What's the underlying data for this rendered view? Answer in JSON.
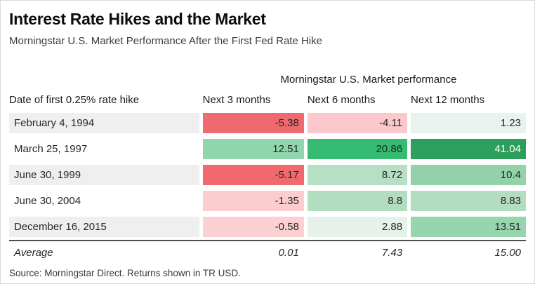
{
  "page": {
    "title": "Interest Rate Hikes and the Market",
    "subtitle": "Morningstar U.S. Market Performance After the First Fed Rate Hike",
    "source": "Source: Morningstar Direct. Returns shown in TR USD."
  },
  "table": {
    "group_header": "Morningstar U.S. Market performance",
    "columns": [
      "Date of first 0.25% rate hike",
      "Next 3 months",
      "Next 6 months",
      "Next 12 months"
    ],
    "rows": [
      {
        "label": "February 4, 1994",
        "label_bg": "#efefef",
        "cells": [
          {
            "v": "-5.38",
            "bg": "#f0696e",
            "fg": "#262626"
          },
          {
            "v": "-4.11",
            "bg": "#fbc8cb",
            "fg": "#262626"
          },
          {
            "v": "1.23",
            "bg": "#e9f2ec",
            "fg": "#262626"
          }
        ]
      },
      {
        "label": "March 25, 1997",
        "label_bg": "#ffffff",
        "cells": [
          {
            "v": "12.51",
            "bg": "#90d5ab",
            "fg": "#262626"
          },
          {
            "v": "20.86",
            "bg": "#36bb72",
            "fg": "#262626"
          },
          {
            "v": "41.04",
            "bg": "#2c9f5c",
            "fg": "#ffffff"
          }
        ]
      },
      {
        "label": "June 30, 1999",
        "label_bg": "#efefef",
        "cells": [
          {
            "v": "-5.17",
            "bg": "#f0696e",
            "fg": "#262626"
          },
          {
            "v": "8.72",
            "bg": "#b7dfc3",
            "fg": "#262626"
          },
          {
            "v": "10.4",
            "bg": "#93d2a8",
            "fg": "#262626"
          }
        ]
      },
      {
        "label": "June 30, 2004",
        "label_bg": "#ffffff",
        "cells": [
          {
            "v": "-1.35",
            "bg": "#fccdcf",
            "fg": "#262626"
          },
          {
            "v": "8.8",
            "bg": "#b2ddbf",
            "fg": "#262626"
          },
          {
            "v": "8.83",
            "bg": "#b2ddbf",
            "fg": "#262626"
          }
        ]
      },
      {
        "label": "December 16, 2015",
        "label_bg": "#efefef",
        "cells": [
          {
            "v": "-0.58",
            "bg": "#fbd0d2",
            "fg": "#262626"
          },
          {
            "v": "2.88",
            "bg": "#e6f1ea",
            "fg": "#262626"
          },
          {
            "v": "13.51",
            "bg": "#97d5ae",
            "fg": "#262626"
          }
        ]
      }
    ],
    "average": {
      "label": "Average",
      "values": [
        "0.01",
        "7.43",
        "15.00"
      ]
    }
  },
  "chart_data": {
    "type": "heatmap",
    "title": "Interest Rate Hikes and the Market",
    "subtitle": "Morningstar U.S. Market Performance After the First Fed Rate Hike",
    "group_header": "Morningstar U.S. Market performance",
    "row_label_header": "Date of first 0.25% rate hike",
    "columns": [
      "Next 3 months",
      "Next 6 months",
      "Next 12 months"
    ],
    "rows": [
      "February 4, 1994",
      "March 25, 1997",
      "June 30, 1999",
      "June 30, 2004",
      "December 16, 2015"
    ],
    "values": [
      [
        -5.38,
        -4.11,
        1.23
      ],
      [
        12.51,
        20.86,
        41.04
      ],
      [
        -5.17,
        8.72,
        10.4
      ],
      [
        -1.35,
        8.8,
        8.83
      ],
      [
        -0.58,
        2.88,
        13.51
      ]
    ],
    "average": [
      0.01,
      7.43,
      15.0
    ],
    "color_scale": {
      "negative": "#f0696e",
      "neutral": "#e9f2ec",
      "positive": "#2c9f5c",
      "note": "red shades for negative returns, green shades for positive returns, intensity scales with magnitude"
    },
    "source": "Source: Morningstar Direct. Returns shown in TR USD."
  }
}
